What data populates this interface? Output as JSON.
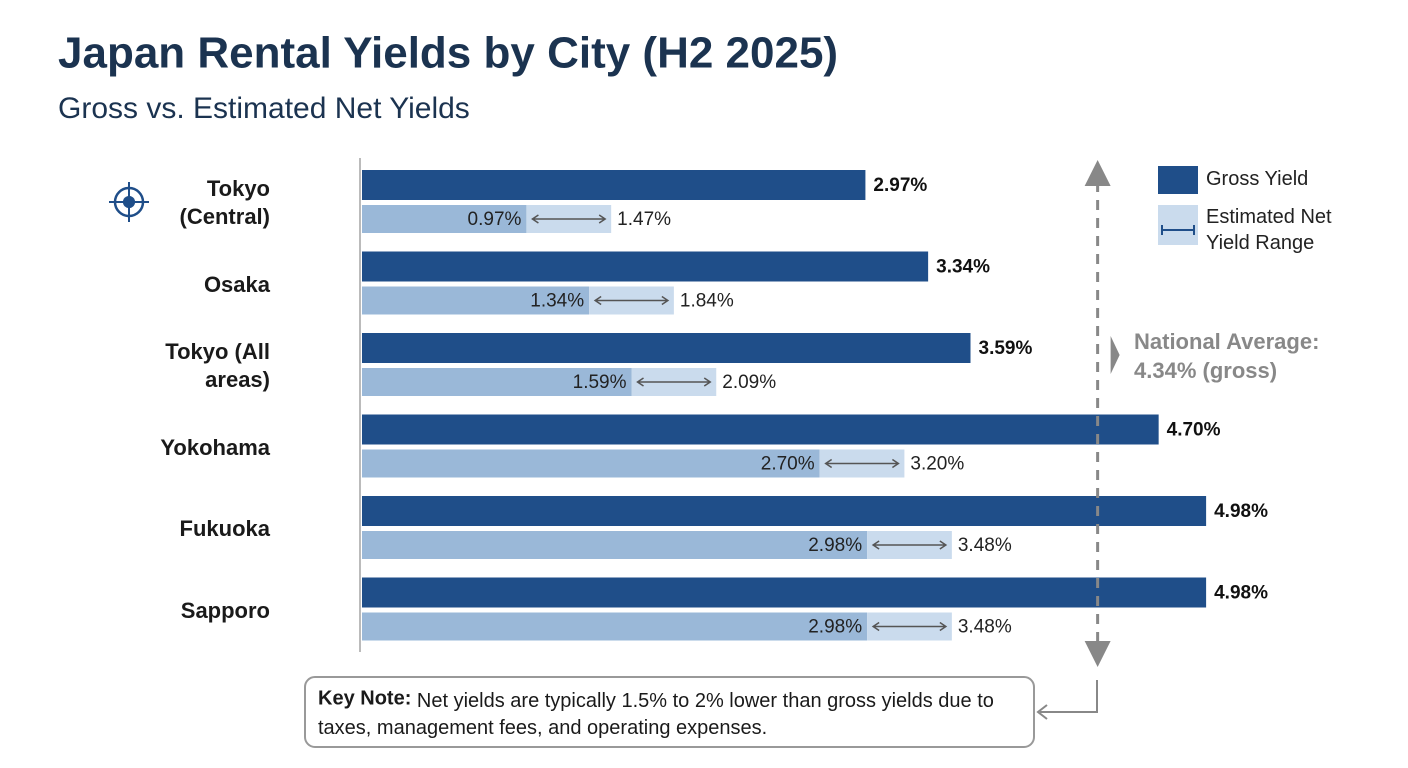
{
  "chart_data": {
    "type": "bar",
    "title": "Japan Rental Yields by City (H2 2025)",
    "subtitle": "Gross vs. Estimated Net Yields",
    "categories": [
      "Tokyo (Central)",
      "Osaka",
      "Tokyo (All areas)",
      "Yokohama",
      "Fukuoka",
      "Sapporo"
    ],
    "series": [
      {
        "name": "Gross Yield",
        "color": "#1f4e89",
        "values": [
          2.97,
          3.34,
          3.59,
          4.7,
          4.98,
          4.98
        ],
        "value_labels": [
          "2.97%",
          "3.34%",
          "3.59%",
          "4.70%",
          "4.98%",
          "4.98%"
        ]
      },
      {
        "name": "Estimated Net Yield Range",
        "color": "#9ab8d8",
        "range_color": "#cadbed",
        "values": [
          0.97,
          1.34,
          1.59,
          2.7,
          2.98,
          2.98
        ],
        "value_labels": [
          "0.97%",
          "1.34%",
          "1.59%",
          "2.70%",
          "2.98%",
          "2.98%"
        ],
        "high": [
          1.47,
          1.84,
          2.09,
          3.2,
          3.48,
          3.48
        ],
        "high_labels": [
          "1.47%",
          "1.84%",
          "2.09%",
          "3.20%",
          "3.48%",
          "3.48%"
        ]
      }
    ],
    "reference_line": {
      "value": 4.34,
      "label": "National Average: 4.34% (gross)"
    },
    "note": {
      "label": "Key Note:",
      "text": "Net yields are typically 1.5% to 2% lower than gross yields due to taxes, management fees, and operating expenses."
    },
    "legend": "top-right"
  }
}
